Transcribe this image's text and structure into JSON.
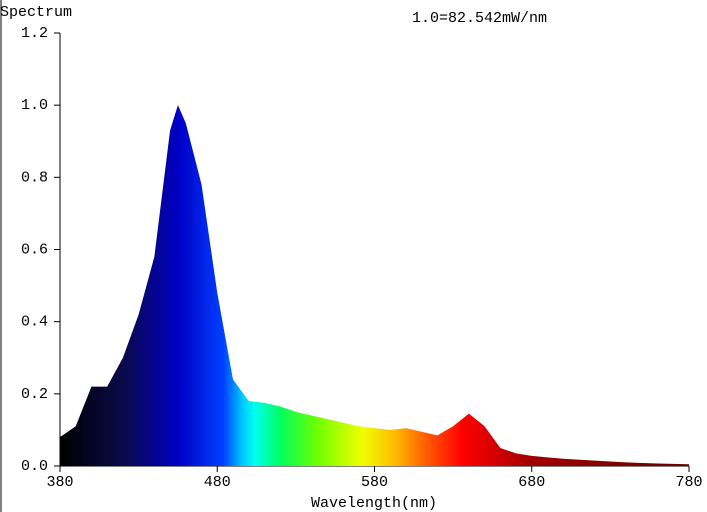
{
  "chart_data": {
    "type": "area",
    "title": "Spectrum",
    "annotation": "1.0=82.542mW/nm",
    "x_label": "Wavelength(nm)",
    "x": [
      380,
      390,
      400,
      410,
      420,
      430,
      440,
      450,
      455,
      460,
      470,
      480,
      490,
      500,
      510,
      520,
      530,
      540,
      550,
      560,
      570,
      580,
      590,
      600,
      610,
      620,
      630,
      640,
      650,
      660,
      670,
      680,
      690,
      700,
      720,
      740,
      760,
      780
    ],
    "values": [
      0.08,
      0.11,
      0.22,
      0.22,
      0.3,
      0.42,
      0.58,
      0.93,
      1.0,
      0.95,
      0.78,
      0.48,
      0.24,
      0.18,
      0.175,
      0.165,
      0.15,
      0.14,
      0.13,
      0.12,
      0.11,
      0.105,
      0.1,
      0.105,
      0.095,
      0.085,
      0.11,
      0.145,
      0.11,
      0.05,
      0.035,
      0.028,
      0.024,
      0.02,
      0.015,
      0.01,
      0.007,
      0.005
    ],
    "xlim": [
      380,
      780
    ],
    "xticks": [
      380,
      480,
      580,
      680,
      780
    ],
    "ylim": [
      0,
      1.2
    ],
    "yticks": [
      {
        "value": 0,
        "label": "0.0"
      },
      0.2,
      0.4,
      0.6,
      0.8,
      {
        "value": 1,
        "label": "1.0"
      },
      1.2
    ]
  }
}
